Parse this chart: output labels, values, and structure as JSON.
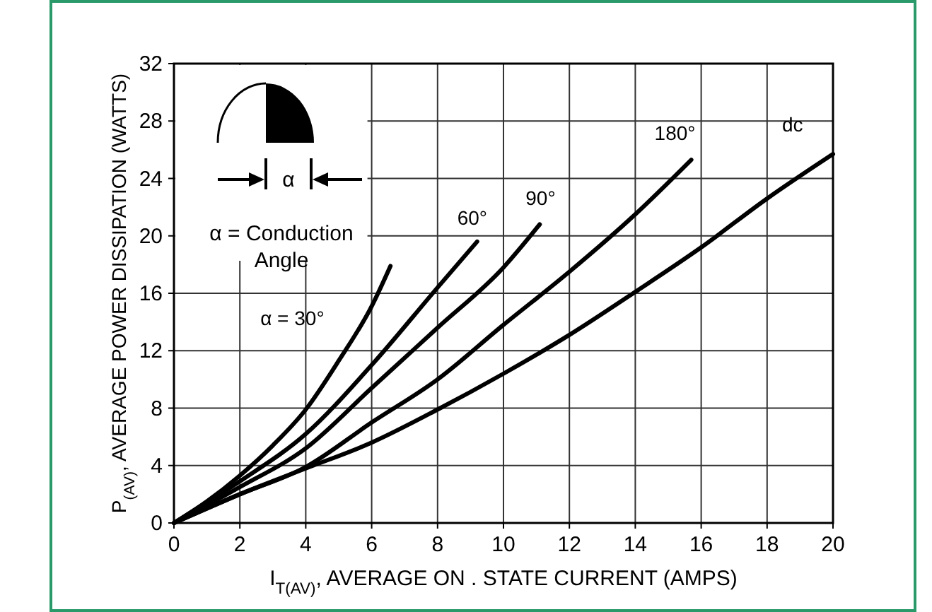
{
  "chart_data": {
    "type": "line",
    "xlabel": "I$_{T(AV)}$, AVERAGE ON . STATE CURRENT (AMPS)",
    "ylabel": "P$_{(AV)}$, AVERAGE POWER DISSIPATION (WATTS)",
    "xlim": [
      0,
      20
    ],
    "xticks": [
      0,
      2,
      4,
      6,
      8,
      10,
      12,
      14,
      16,
      18,
      20
    ],
    "ylim": [
      0,
      32
    ],
    "yticks": [
      0,
      4,
      8,
      12,
      16,
      20,
      24,
      28,
      32
    ],
    "grid": true,
    "marker": "none",
    "line_style": "solid",
    "annotations": [
      "α",
      "α = Conduction Angle"
    ],
    "series": [
      {
        "name": "α = 30°",
        "color": "#000000",
        "x": [
          0,
          1,
          2,
          3,
          4,
          5,
          6,
          6.57
        ],
        "values": [
          0,
          1.5,
          3.3,
          5.4,
          7.9,
          11.3,
          15.1,
          17.9
        ]
      },
      {
        "name": "60°",
        "color": "#000000",
        "x": [
          0,
          2,
          4,
          6,
          8,
          9.2
        ],
        "values": [
          0,
          2.9,
          6.2,
          11,
          16.4,
          19.6
        ]
      },
      {
        "name": "90°",
        "color": "#000000",
        "x": [
          0,
          2,
          4,
          6,
          8,
          10,
          11.1
        ],
        "values": [
          0,
          2.5,
          5.2,
          9.4,
          13.6,
          17.8,
          20.8
        ]
      },
      {
        "name": "180°",
        "color": "#000000",
        "x": [
          0,
          2,
          4,
          6,
          8,
          10,
          12,
          14,
          15.7
        ],
        "values": [
          0,
          2,
          3.9,
          7,
          10,
          13.8,
          17.5,
          21.5,
          25.3
        ]
      },
      {
        "name": "dc",
        "color": "#000000",
        "x": [
          0,
          2,
          4,
          6,
          8,
          10,
          12,
          14,
          16,
          18,
          20
        ],
        "values": [
          0,
          2,
          3.8,
          5.6,
          7.9,
          10.4,
          13.1,
          16.1,
          19.2,
          22.6,
          25.7
        ]
      }
    ]
  }
}
